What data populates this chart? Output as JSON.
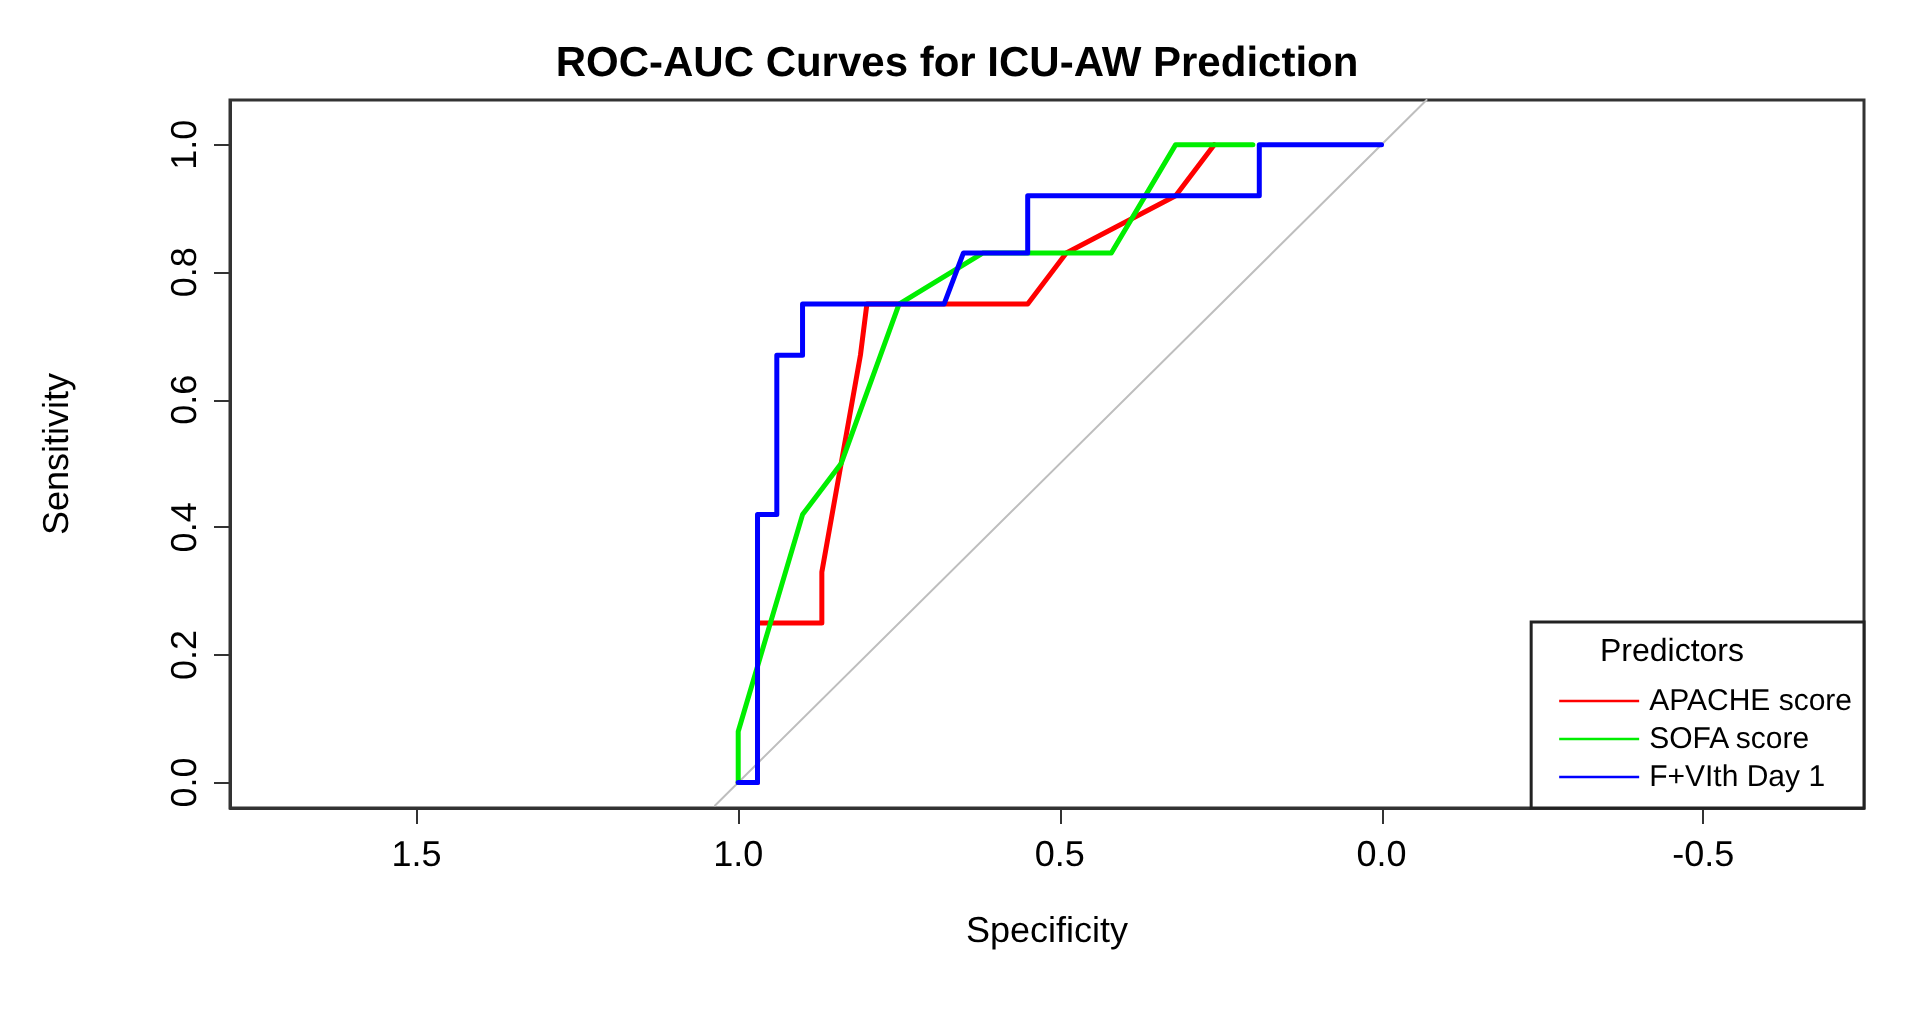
{
  "chart_data": {
    "type": "line",
    "title": "ROC-AUC Curves for ICU-AW Prediction",
    "xlabel": "Specificity",
    "ylabel": "Sensitivity",
    "legend_title": "Predictors",
    "xlim": [
      1.79,
      -0.75
    ],
    "ylim": [
      -0.04,
      1.07
    ],
    "xticks": [
      1.5,
      {
        "value": 1,
        "label": "1.0"
      },
      0.5,
      {
        "value": 0,
        "label": "0.0"
      },
      -0.5
    ],
    "yticks": [
      {
        "value": 0,
        "label": "0.0"
      },
      0.2,
      0.4,
      0.6,
      0.8,
      {
        "value": 1,
        "label": "1.0"
      }
    ],
    "grid": false,
    "legend": "bottom right",
    "marker": "none",
    "line_style": "solid",
    "series": [
      {
        "color": "#bebebe",
        "x": [
          1.036,
          -0.07
        ],
        "values": [
          -0.036,
          1.07
        ]
      },
      {
        "name": "APACHE score",
        "color": "#ff0000",
        "x": [
          1,
          0.97,
          0.97,
          0.87,
          0.87,
          0.81,
          0.8,
          0.55,
          0.49,
          0.32,
          0.26
        ],
        "values": [
          0,
          0,
          0.25,
          0.25,
          0.33,
          0.67,
          0.75,
          0.75,
          0.83,
          0.92,
          1
        ]
      },
      {
        "name": "SOFA score",
        "color": "#00ee00",
        "x": [
          1,
          1,
          0.9,
          0.84,
          0.75,
          0.62,
          0.42,
          0.32,
          0.2
        ],
        "values": [
          0,
          0.08,
          0.42,
          0.5,
          0.75,
          0.83,
          0.83,
          1,
          1
        ]
      },
      {
        "name": "F+VIth Day 1",
        "color": "#0000ff",
        "x": [
          1,
          0.97,
          0.97,
          0.94,
          0.94,
          0.9,
          0.9,
          0.68,
          0.65,
          0.55,
          0.55,
          0.19,
          0.19,
          0
        ],
        "values": [
          0,
          0,
          0.42,
          0.42,
          0.67,
          0.67,
          0.75,
          0.75,
          0.83,
          0.83,
          0.92,
          0.92,
          1,
          1
        ]
      }
    ]
  }
}
